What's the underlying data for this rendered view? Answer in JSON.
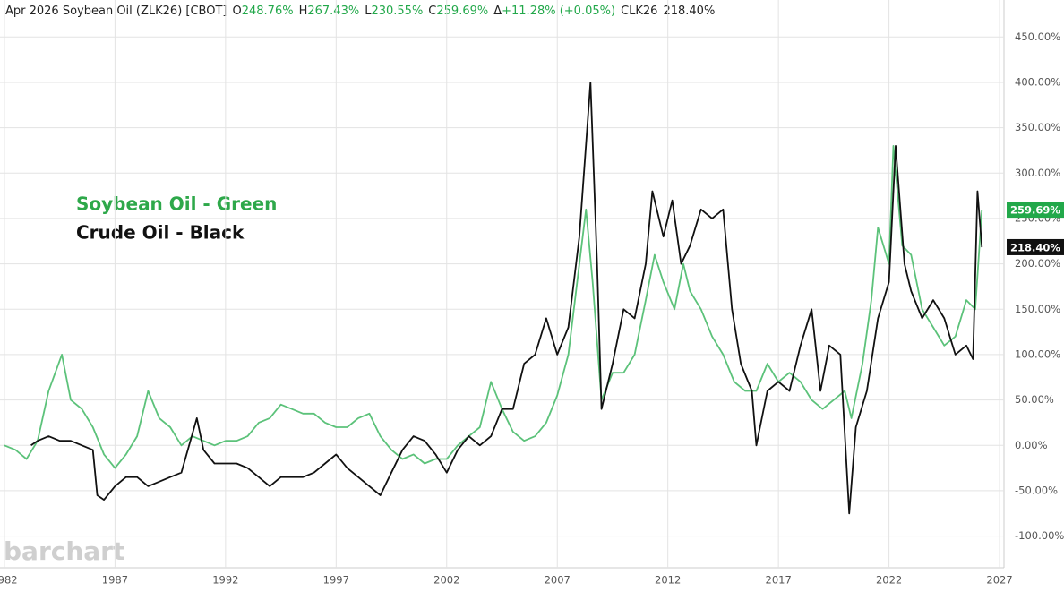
{
  "chart_data": {
    "type": "line",
    "header": {
      "symbol": "Apr 2026 Soybean Oil (ZLK26) [CBOT]",
      "fields": [
        {
          "key": "O",
          "value": "248.76%"
        },
        {
          "key": "H",
          "value": "267.43%"
        },
        {
          "key": "L",
          "value": "230.55%"
        },
        {
          "key": "C",
          "value": "259.69%"
        },
        {
          "key": "Δ",
          "value": "+11.28% (+0.05%)"
        }
      ],
      "compare_symbol": "CLK26",
      "compare_value": "218.40%",
      "value_color": "#22a84a"
    },
    "annotations": [
      {
        "text": "Soybean Oil - Green",
        "color": "#2ea84a"
      },
      {
        "text": "Crude Oil - Black",
        "color": "#111111"
      }
    ],
    "watermark": "barchart",
    "xlim": [
      1981.8,
      2027.2
    ],
    "xticks": [
      1982,
      1987,
      1992,
      1997,
      2002,
      2007,
      2012,
      2017,
      2022,
      2027
    ],
    "ylim": [
      -131,
      471
    ],
    "yticks": [
      {
        "value": -100,
        "label": "-100.00%"
      },
      {
        "value": -50,
        "label": "-50.00%"
      },
      {
        "value": 0,
        "label": "0.00%"
      },
      {
        "value": 50,
        "label": "50.00%"
      },
      {
        "value": 100,
        "label": "100.00%"
      },
      {
        "value": 150,
        "label": "150.00%"
      },
      {
        "value": 200,
        "label": "200.00%"
      },
      {
        "value": 250,
        "label": "250.00%"
      },
      {
        "value": 300,
        "label": "300.00%"
      },
      {
        "value": 350,
        "label": "350.00%"
      },
      {
        "value": 400,
        "label": "400.00%"
      },
      {
        "value": 450,
        "label": "450.00%"
      }
    ],
    "grid": true,
    "series": [
      {
        "name": "Soybean Oil",
        "color": "#5cc27a",
        "close": {
          "value": 259.69,
          "label": "259.69%"
        },
        "badge_color": "#22a84a",
        "x": [
          1982.0,
          1982.5,
          1983.0,
          1983.5,
          1984.0,
          1984.3,
          1984.6,
          1985.0,
          1985.5,
          1986.0,
          1986.5,
          1987.0,
          1987.5,
          1988.0,
          1988.5,
          1989.0,
          1989.5,
          1990.0,
          1990.5,
          1991.0,
          1991.5,
          1992.0,
          1992.5,
          1993.0,
          1993.5,
          1994.0,
          1994.5,
          1995.0,
          1995.5,
          1996.0,
          1996.5,
          1997.0,
          1997.5,
          1998.0,
          1998.5,
          1999.0,
          1999.5,
          2000.0,
          2000.5,
          2001.0,
          2001.5,
          2002.0,
          2002.5,
          2003.0,
          2003.5,
          2004.0,
          2004.5,
          2005.0,
          2005.5,
          2006.0,
          2006.5,
          2007.0,
          2007.5,
          2008.0,
          2008.3,
          2008.6,
          2009.0,
          2009.5,
          2010.0,
          2010.5,
          2011.0,
          2011.4,
          2011.8,
          2012.3,
          2012.7,
          2013.0,
          2013.5,
          2014.0,
          2014.5,
          2015.0,
          2015.5,
          2016.0,
          2016.5,
          2017.0,
          2017.5,
          2018.0,
          2018.5,
          2019.0,
          2019.5,
          2020.0,
          2020.3,
          2020.8,
          2021.2,
          2021.5,
          2022.0,
          2022.2,
          2022.6,
          2023.0,
          2023.5,
          2024.0,
          2024.5,
          2025.0,
          2025.5,
          2025.9,
          2026.2
        ],
        "values": [
          0,
          -5,
          -15,
          5,
          60,
          80,
          100,
          50,
          40,
          20,
          -10,
          -25,
          -10,
          10,
          60,
          30,
          20,
          0,
          10,
          5,
          0,
          5,
          5,
          10,
          25,
          30,
          45,
          40,
          35,
          35,
          25,
          20,
          20,
          30,
          35,
          10,
          -5,
          -15,
          -10,
          -20,
          -15,
          -15,
          0,
          10,
          20,
          70,
          40,
          15,
          5,
          10,
          25,
          55,
          100,
          200,
          260,
          180,
          50,
          80,
          80,
          100,
          160,
          210,
          180,
          150,
          200,
          170,
          150,
          120,
          100,
          70,
          60,
          60,
          90,
          70,
          80,
          70,
          50,
          40,
          50,
          60,
          30,
          90,
          160,
          240,
          200,
          330,
          220,
          210,
          150,
          130,
          110,
          120,
          160,
          150,
          259.69
        ]
      },
      {
        "name": "Crude Oil",
        "color": "#111111",
        "close": {
          "value": 218.4,
          "label": "218.40%"
        },
        "badge_color": "#111111",
        "x": [
          1983.2,
          1983.5,
          1984.0,
          1984.5,
          1985.0,
          1985.5,
          1986.0,
          1986.2,
          1986.5,
          1987.0,
          1987.5,
          1988.0,
          1988.5,
          1989.0,
          1989.5,
          1990.0,
          1990.7,
          1991.0,
          1991.5,
          1992.0,
          1992.5,
          1993.0,
          1993.5,
          1994.0,
          1994.5,
          1995.0,
          1995.5,
          1996.0,
          1996.5,
          1997.0,
          1997.5,
          1998.0,
          1998.5,
          1999.0,
          1999.5,
          2000.0,
          2000.5,
          2001.0,
          2001.5,
          2002.0,
          2002.5,
          2003.0,
          2003.5,
          2004.0,
          2004.5,
          2005.0,
          2005.5,
          2006.0,
          2006.5,
          2007.0,
          2007.5,
          2008.0,
          2008.5,
          2008.8,
          2009.0,
          2009.5,
          2010.0,
          2010.5,
          2011.0,
          2011.3,
          2011.8,
          2012.2,
          2012.6,
          2013.0,
          2013.5,
          2014.0,
          2014.5,
          2014.9,
          2015.3,
          2015.8,
          2016.0,
          2016.5,
          2017.0,
          2017.5,
          2018.0,
          2018.5,
          2018.9,
          2019.3,
          2019.8,
          2020.2,
          2020.5,
          2021.0,
          2021.5,
          2022.0,
          2022.3,
          2022.7,
          2023.0,
          2023.5,
          2024.0,
          2024.5,
          2025.0,
          2025.5,
          2025.8,
          2026.0,
          2026.2
        ],
        "values": [
          0,
          5,
          10,
          5,
          5,
          0,
          -5,
          -55,
          -60,
          -45,
          -35,
          -35,
          -45,
          -40,
          -35,
          -30,
          30,
          -5,
          -20,
          -20,
          -20,
          -25,
          -35,
          -45,
          -35,
          -35,
          -35,
          -30,
          -20,
          -10,
          -25,
          -35,
          -45,
          -55,
          -30,
          -5,
          10,
          5,
          -10,
          -30,
          -5,
          10,
          0,
          10,
          40,
          40,
          90,
          100,
          140,
          100,
          130,
          230,
          400,
          200,
          40,
          90,
          150,
          140,
          200,
          280,
          230,
          270,
          200,
          220,
          260,
          250,
          260,
          150,
          90,
          60,
          0,
          60,
          70,
          60,
          110,
          150,
          60,
          110,
          100,
          -75,
          20,
          60,
          140,
          180,
          330,
          200,
          170,
          140,
          160,
          140,
          100,
          110,
          95,
          280,
          218.4
        ]
      }
    ]
  }
}
